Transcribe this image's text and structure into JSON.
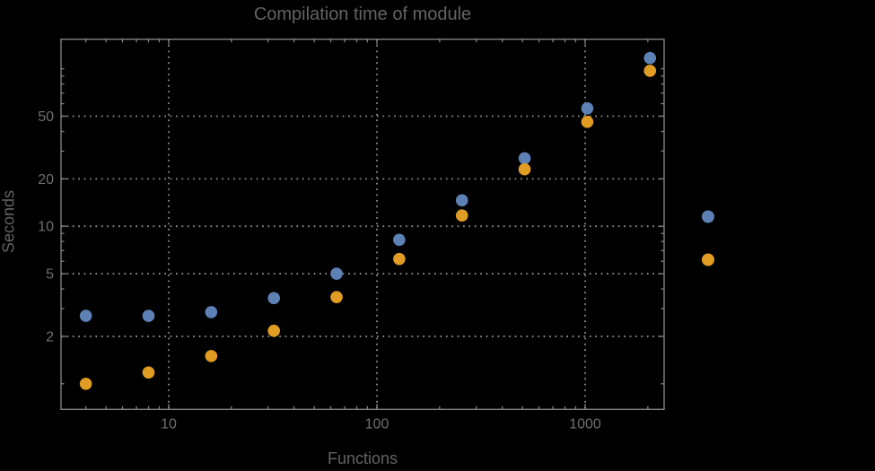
{
  "chart_data": {
    "type": "scatter",
    "title": "Compilation time of module",
    "xlabel": "Functions",
    "ylabel": "Seconds",
    "x_scale": "log",
    "y_scale": "log",
    "x_range": [
      3.04,
      2394
    ],
    "y_range": [
      0.688,
      154
    ],
    "x_ticks": [
      10,
      100,
      1000
    ],
    "y_ticks": [
      2,
      5,
      10,
      20,
      50
    ],
    "x_minor_ticks": [
      4,
      5,
      6,
      7,
      8,
      9,
      20,
      30,
      40,
      50,
      60,
      70,
      80,
      90,
      200,
      300,
      400,
      500,
      600,
      700,
      800,
      900,
      2000
    ],
    "y_minor_ticks": [
      1,
      3,
      4,
      6,
      7,
      8,
      9,
      30,
      40,
      60,
      70,
      80,
      90,
      100
    ],
    "grid": "dotted lines at labeled ticks only",
    "legend_position": "outside-right, color markers only (no visible text labels)",
    "x": [
      4,
      8,
      16,
      32,
      64,
      128,
      256,
      512,
      1024,
      2048
    ],
    "series": [
      {
        "name": "blue",
        "color": "#5e81b5",
        "values": [
          2.7,
          2.7,
          2.85,
          3.5,
          5.0,
          8.2,
          14.6,
          27,
          56,
          117
        ]
      },
      {
        "name": "orange",
        "color": "#e19c24",
        "values": [
          1.0,
          1.18,
          1.5,
          2.17,
          3.55,
          6.2,
          11.7,
          23,
          46,
          97
        ]
      }
    ]
  },
  "colors": {
    "background": "#000000",
    "frame": "#828282",
    "gridline": "#898989",
    "title_text": "#636363",
    "axis_label_text": "#636363",
    "tick_label_text": "#6f6f6f"
  }
}
